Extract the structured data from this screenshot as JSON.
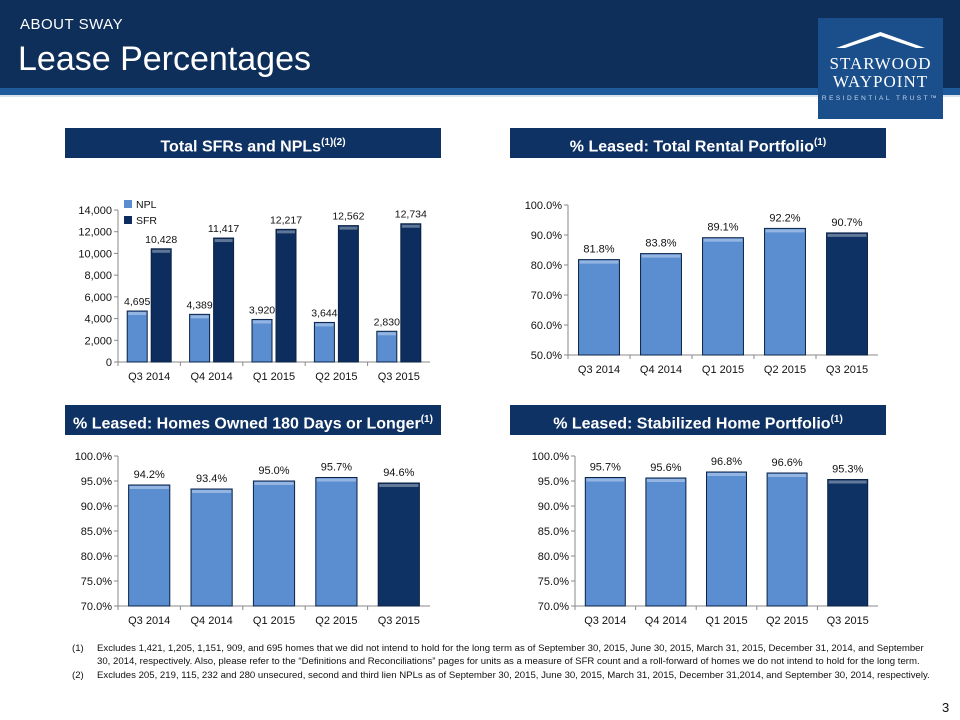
{
  "header": {
    "subtitle": "ABOUT SWAY",
    "title": "Lease Percentages"
  },
  "logo": {
    "line1": "STARWOOD",
    "line2": "WAYPOINT",
    "line3": "RESIDENTIAL TRUST™"
  },
  "panels": [
    {
      "title": "Total SFRs and NPLs",
      "sup": "(1)(2)"
    },
    {
      "title": "% Leased:  Total Rental Portfolio",
      "sup": "(1)"
    },
    {
      "title": "% Leased:  Homes Owned 180 Days or Longer",
      "sup": "(1)"
    },
    {
      "title": "% Leased:  Stabilized Home Portfolio",
      "sup": "(1)"
    }
  ],
  "colors": {
    "header": "#0d2f5a",
    "npl": "#5b8ed1",
    "sfr": "#0c2d5e",
    "bar_light": "#5b8ed1",
    "bar_dark": "#0f3264"
  },
  "chart_data": [
    {
      "type": "bar",
      "categories": [
        "Q3 2014",
        "Q4 2014",
        "Q1 2015",
        "Q2 2015",
        "Q3 2015"
      ],
      "series": [
        {
          "name": "NPL",
          "values": [
            4695,
            4389,
            3920,
            3644,
            2830
          ],
          "labels": [
            "4,695",
            "4,389",
            "3,920",
            "3,644",
            "2,830"
          ]
        },
        {
          "name": "SFR",
          "values": [
            10428,
            11417,
            12217,
            12562,
            12734
          ],
          "labels": [
            "10,428",
            "11,417",
            "12,217",
            "12,562",
            "12,734"
          ]
        }
      ],
      "yticks": [
        "0",
        "2,000",
        "4,000",
        "6,000",
        "8,000",
        "10,000",
        "12,000",
        "14,000"
      ],
      "ylim": [
        0,
        14000
      ],
      "legend": "top-left"
    },
    {
      "type": "bar",
      "categories": [
        "Q3 2014",
        "Q4 2014",
        "Q1 2015",
        "Q2 2015",
        "Q3 2015"
      ],
      "values": [
        81.8,
        83.8,
        89.1,
        92.2,
        90.7
      ],
      "labels": [
        "81.8%",
        "83.8%",
        "89.1%",
        "92.2%",
        "90.7%"
      ],
      "yticks": [
        "50.0%",
        "60.0%",
        "70.0%",
        "80.0%",
        "90.0%",
        "100.0%"
      ],
      "ylim": [
        50,
        100
      ]
    },
    {
      "type": "bar",
      "categories": [
        "Q3 2014",
        "Q4 2014",
        "Q1 2015",
        "Q2 2015",
        "Q3 2015"
      ],
      "values": [
        94.2,
        93.4,
        95.0,
        95.7,
        94.6
      ],
      "labels": [
        "94.2%",
        "93.4%",
        "95.0%",
        "95.7%",
        "94.6%"
      ],
      "yticks": [
        "70.0%",
        "75.0%",
        "80.0%",
        "85.0%",
        "90.0%",
        "95.0%",
        "100.0%"
      ],
      "ylim": [
        70,
        100
      ]
    },
    {
      "type": "bar",
      "categories": [
        "Q3 2014",
        "Q4 2014",
        "Q1 2015",
        "Q2 2015",
        "Q3 2015"
      ],
      "values": [
        95.7,
        95.6,
        96.8,
        96.6,
        95.3
      ],
      "labels": [
        "95.7%",
        "95.6%",
        "96.8%",
        "96.6%",
        "95.3%"
      ],
      "yticks": [
        "70.0%",
        "75.0%",
        "80.0%",
        "85.0%",
        "90.0%",
        "95.0%",
        "100.0%"
      ],
      "ylim": [
        70,
        100
      ]
    }
  ],
  "footnotes": [
    {
      "num": "(1)",
      "text": "Excludes 1,421, 1,205, 1,151, 909, and 695 homes that we did not intend to hold for the long term as of  September 30, 2015, June 30, 2015, March 31, 2015, December 31, 2014, and September 30, 2014, respectively. Also, please refer to the “Definitions and Reconciliations” pages for units as a measure of SFR count and a roll-forward of homes we do not intend to hold for the long term."
    },
    {
      "num": "(2)",
      "text": "Excludes 205, 219, 115, 232 and 280 unsecured, second and third lien NPLs as of  September 30, 2015, June 30, 2015, March 31, 2015, December 31,2014, and September 30, 2014, respectively."
    }
  ],
  "page_number": "3"
}
